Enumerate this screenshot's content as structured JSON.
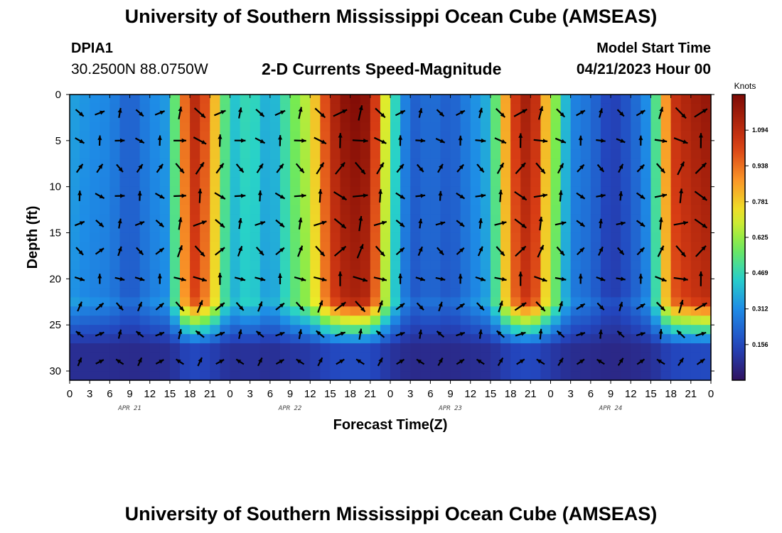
{
  "header": {
    "title": "University of Southern Mississippi Ocean Cube (AMSEAS)",
    "station": "DPIA1",
    "coordinates": "30.2500N  88.0750W",
    "plot_title": "2-D Currents Speed-Magnitude",
    "model_start_label": "Model Start Time",
    "model_start_value": "04/21/2023 Hour 00"
  },
  "footer": {
    "title": "University of Southern Mississippi Ocean Cube (AMSEAS)"
  },
  "chart_data": {
    "type": "heatmap",
    "title": "2-D Currents Speed-Magnitude",
    "xlabel": "Forecast Time(Z)",
    "ylabel": "Depth (ft)",
    "x_range_hours": [
      0,
      96
    ],
    "ylim": [
      0,
      31
    ],
    "y_inverted": true,
    "x_ticks": [
      "0",
      "3",
      "6",
      "9",
      "12",
      "15",
      "18",
      "21",
      "0",
      "3",
      "6",
      "9",
      "12",
      "15",
      "18",
      "21",
      "0",
      "3",
      "6",
      "9",
      "12",
      "15",
      "18",
      "21",
      "0",
      "3",
      "6",
      "9",
      "12",
      "15",
      "18",
      "21",
      "0"
    ],
    "y_ticks": [
      0,
      5,
      10,
      15,
      20,
      25,
      30
    ],
    "day_labels": [
      "APR 21",
      "APR 22",
      "APR 23",
      "APR 24"
    ],
    "colorbar": {
      "unit": "Knots",
      "range": [
        0,
        1.25
      ],
      "tick_values": [
        1.094,
        0.938,
        0.781,
        0.625,
        0.469,
        0.312,
        0.156
      ],
      "tick_labels": [
        "1.094",
        "0.938",
        "0.781",
        "0.625",
        "0.469",
        "0.312",
        "0.156"
      ]
    },
    "surface_speed_by_hour": [
      {
        "hour": 0,
        "speed": 0.36
      },
      {
        "hour": 3,
        "speed": 0.32
      },
      {
        "hour": 6,
        "speed": 0.3
      },
      {
        "hour": 9,
        "speed": 0.2
      },
      {
        "hour": 12,
        "speed": 0.3
      },
      {
        "hour": 15,
        "speed": 0.35
      },
      {
        "hour": 18,
        "speed": 1.15
      },
      {
        "hour": 21,
        "speed": 0.95
      },
      {
        "hour": 24,
        "speed": 0.4
      },
      {
        "hour": 27,
        "speed": 0.5
      },
      {
        "hour": 30,
        "speed": 0.35
      },
      {
        "hour": 33,
        "speed": 0.55
      },
      {
        "hour": 36,
        "speed": 0.7
      },
      {
        "hour": 39,
        "speed": 1.1
      },
      {
        "hour": 42,
        "speed": 1.25
      },
      {
        "hour": 45,
        "speed": 1.2
      },
      {
        "hour": 48,
        "speed": 0.55
      },
      {
        "hour": 51,
        "speed": 0.2
      },
      {
        "hour": 54,
        "speed": 0.25
      },
      {
        "hour": 57,
        "speed": 0.2
      },
      {
        "hour": 60,
        "speed": 0.3
      },
      {
        "hour": 63,
        "speed": 0.4
      },
      {
        "hour": 66,
        "speed": 1.0
      },
      {
        "hour": 69,
        "speed": 1.2
      },
      {
        "hour": 72,
        "speed": 0.7
      },
      {
        "hour": 75,
        "speed": 0.3
      },
      {
        "hour": 78,
        "speed": 0.25
      },
      {
        "hour": 81,
        "speed": 0.12
      },
      {
        "hour": 84,
        "speed": 0.2
      },
      {
        "hour": 87,
        "speed": 0.35
      },
      {
        "hour": 90,
        "speed": 1.05
      },
      {
        "hour": 93,
        "speed": 1.15
      },
      {
        "hour": 96,
        "speed": 1.2
      }
    ]
  }
}
